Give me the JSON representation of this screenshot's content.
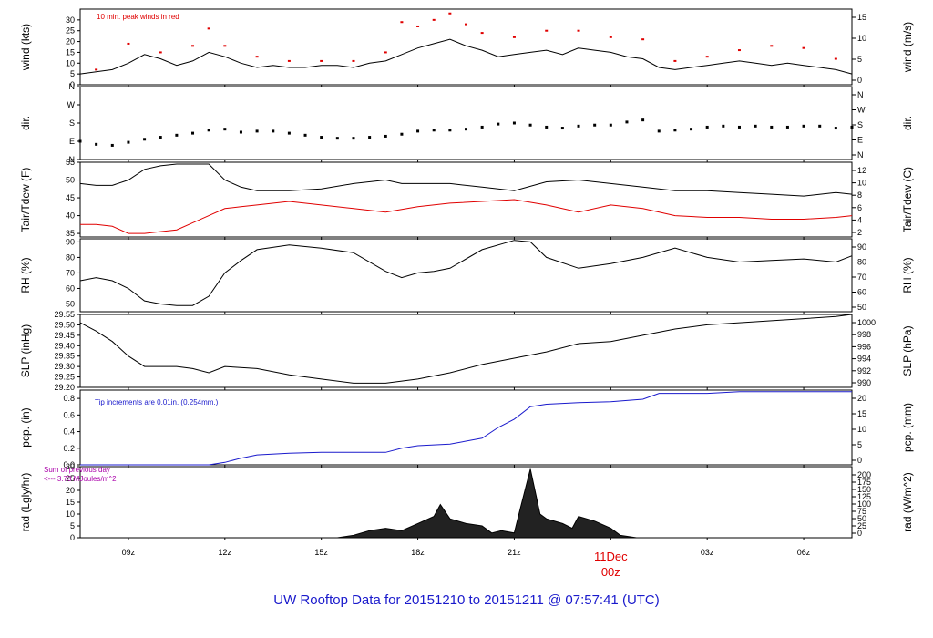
{
  "title": "UW Rooftop Data for 20151210  to  20151211 @ 07:57:41  (UTC)",
  "colors": {
    "line": "#000000",
    "red": "#e00000",
    "blue": "#1a1acc",
    "purple": "#aa00aa",
    "footer": "#1a1acc"
  },
  "chart_data": [
    {
      "id": "wind",
      "type": "line",
      "ylabel_left": "wind (kts)",
      "ylabel_right": "wind (m/s)",
      "ylim": [
        0,
        35
      ],
      "yticks_left": [
        "0",
        "5",
        "10",
        "15",
        "20",
        "25",
        "30"
      ],
      "yticks_right": [
        "0",
        "5",
        "10",
        "15"
      ],
      "annotation": "10 min. peak winds in red",
      "series": [
        {
          "name": "wind speed",
          "color": "#000000",
          "x": [
            7.5,
            8,
            8.5,
            9,
            9.5,
            10,
            10.5,
            11,
            11.5,
            12,
            12.5,
            13,
            13.5,
            14,
            14.5,
            15,
            15.5,
            16,
            16.5,
            17,
            17.5,
            18,
            18.5,
            19,
            19.5,
            20,
            20.5,
            21,
            21.5,
            22,
            22.5,
            23,
            23.5,
            24,
            24.5,
            25,
            25.5,
            26,
            26.5,
            27,
            27.5,
            28,
            28.5,
            29,
            29.5,
            30,
            30.5,
            31,
            31.5
          ],
          "values": [
            5,
            6,
            7,
            10,
            14,
            12,
            9,
            11,
            15,
            13,
            10,
            8,
            9,
            8,
            8,
            9,
            9,
            8,
            10,
            11,
            14,
            17,
            19,
            21,
            18,
            16,
            13,
            14,
            15,
            16,
            14,
            17,
            16,
            15,
            13,
            12,
            8,
            7,
            8,
            9,
            10,
            11,
            10,
            9,
            10,
            9,
            8,
            7,
            5
          ]
        },
        {
          "name": "10 min. peak winds",
          "color": "#e00000",
          "x": [
            8,
            9,
            10,
            11,
            11.5,
            12,
            13,
            14,
            15,
            16,
            17,
            17.5,
            18,
            18.5,
            19,
            19.5,
            20,
            21,
            22,
            23,
            24,
            25,
            26,
            27,
            28,
            29,
            30,
            31
          ],
          "values": [
            7,
            19,
            15,
            18,
            26,
            18,
            13,
            11,
            11,
            11,
            15,
            29,
            27,
            30,
            33,
            28,
            24,
            22,
            25,
            25,
            22,
            21,
            11,
            13,
            16,
            18,
            17,
            12
          ]
        }
      ]
    },
    {
      "id": "dir",
      "type": "scatter",
      "ylabel_left": "dir.",
      "ylabel_right": "dir.",
      "ylim": [
        0,
        360
      ],
      "yticks_left": [
        "N",
        "E",
        "S",
        "W",
        "N"
      ],
      "yticks_right": [
        "N",
        "E",
        "S",
        "W",
        "N"
      ],
      "series": [
        {
          "name": "wind direction",
          "color": "#000000",
          "x": [
            7.5,
            8,
            8.5,
            9,
            9.5,
            10,
            10.5,
            11,
            11.5,
            12,
            12.5,
            13,
            13.5,
            14,
            14.5,
            15,
            15.5,
            16,
            16.5,
            17,
            17.5,
            18,
            18.5,
            19,
            19.5,
            20,
            20.5,
            21,
            21.5,
            22,
            22.5,
            23,
            23.5,
            24,
            24.5,
            25,
            25.5,
            26,
            26.5,
            27,
            27.5,
            28,
            28.5,
            29,
            29.5,
            30,
            30.5,
            31,
            31.5
          ],
          "values": [
            90,
            75,
            70,
            85,
            100,
            110,
            120,
            130,
            145,
            150,
            135,
            140,
            140,
            130,
            120,
            110,
            105,
            105,
            110,
            115,
            125,
            140,
            145,
            145,
            150,
            160,
            175,
            180,
            170,
            160,
            155,
            165,
            170,
            170,
            185,
            195,
            140,
            145,
            150,
            160,
            165,
            160,
            165,
            160,
            160,
            165,
            165,
            155,
            160
          ]
        }
      ]
    },
    {
      "id": "temp",
      "type": "line",
      "ylabel_left": "Tair/Tdew (F)",
      "ylabel_right": "Tair/Tdew (C)",
      "ylim": [
        34,
        55
      ],
      "yticks_left": [
        "35",
        "40",
        "45",
        "50",
        "55"
      ],
      "yticks_right": [
        "2",
        "4",
        "6",
        "8",
        "10",
        "12"
      ],
      "series": [
        {
          "name": "Tair",
          "color": "#000000",
          "x": [
            7.5,
            8,
            8.5,
            9,
            9.5,
            10,
            10.5,
            11,
            11.5,
            12,
            12.5,
            13,
            14,
            15,
            16,
            17,
            17.5,
            18,
            19,
            20,
            21,
            22,
            23,
            24,
            25,
            26,
            27,
            28,
            29,
            30,
            31,
            31.5
          ],
          "values": [
            49,
            48.5,
            48.5,
            50,
            53,
            54,
            54.5,
            54.5,
            54.5,
            50,
            48,
            47,
            47,
            47.5,
            49,
            50,
            49,
            49,
            49,
            48,
            47,
            49.5,
            50,
            49,
            48,
            47,
            47,
            46.5,
            46,
            45.5,
            46.5,
            46
          ]
        },
        {
          "name": "Tdew",
          "color": "#e00000",
          "x": [
            7.5,
            8,
            8.5,
            9,
            9.5,
            10,
            10.5,
            11,
            11.5,
            12,
            12.5,
            13,
            14,
            15,
            16,
            17,
            18,
            19,
            20,
            21,
            22,
            23,
            24,
            25,
            26,
            27,
            28,
            29,
            30,
            31,
            31.5
          ],
          "values": [
            37.5,
            37.5,
            37,
            35,
            35,
            35.5,
            36,
            38,
            40,
            42,
            42.5,
            43,
            44,
            43,
            42,
            41,
            42.5,
            43.5,
            44,
            44.5,
            43,
            41,
            43,
            42,
            40,
            39.5,
            39.5,
            39,
            39,
            39.5,
            40
          ]
        }
      ]
    },
    {
      "id": "rh",
      "type": "line",
      "ylabel_left": "RH (%)",
      "ylabel_right": "RH (%)",
      "ylim": [
        45,
        92
      ],
      "yticks_left": [
        "50",
        "60",
        "70",
        "80",
        "90"
      ],
      "yticks_right": [
        "50",
        "60",
        "70",
        "80",
        "90"
      ],
      "series": [
        {
          "name": "RH",
          "color": "#000000",
          "x": [
            7.5,
            8,
            8.5,
            9,
            9.5,
            10,
            10.5,
            11,
            11.5,
            12,
            12.5,
            13,
            14,
            15,
            16,
            17,
            17.5,
            18,
            18.5,
            19,
            20,
            21,
            21.5,
            22,
            23,
            24,
            25,
            26,
            27,
            28,
            29,
            30,
            31,
            31.5
          ],
          "values": [
            65,
            67,
            65,
            60,
            52,
            50,
            49,
            49,
            55,
            70,
            78,
            85,
            88,
            86,
            83,
            71,
            67,
            70,
            71,
            73,
            85,
            91,
            90,
            80,
            73,
            76,
            80,
            86,
            80,
            77,
            78,
            79,
            77,
            81
          ]
        }
      ]
    },
    {
      "id": "slp",
      "type": "line",
      "ylabel_left": "SLP (inHg)",
      "ylabel_right": "SLP (hPa)",
      "ylim": [
        29.2,
        29.55
      ],
      "yticks_left": [
        "29.20",
        "29.25",
        "29.30",
        "29.35",
        "29.40",
        "29.45",
        "29.50",
        "29.55"
      ],
      "yticks_right": [
        "990",
        "992",
        "994",
        "996",
        "998",
        "1000"
      ],
      "series": [
        {
          "name": "SLP",
          "color": "#000000",
          "x": [
            7.5,
            8,
            8.5,
            9,
            9.5,
            10,
            10.5,
            11,
            11.5,
            12,
            13,
            14,
            15,
            16,
            17,
            18,
            19,
            20,
            21,
            22,
            23,
            24,
            25,
            26,
            27,
            28,
            29,
            30,
            31,
            31.5
          ],
          "values": [
            29.51,
            29.47,
            29.42,
            29.35,
            29.3,
            29.3,
            29.3,
            29.29,
            29.27,
            29.3,
            29.29,
            29.26,
            29.24,
            29.22,
            29.22,
            29.24,
            29.27,
            29.31,
            29.34,
            29.37,
            29.41,
            29.42,
            29.45,
            29.48,
            29.5,
            29.51,
            29.52,
            29.53,
            29.54,
            29.55
          ]
        }
      ]
    },
    {
      "id": "pcp",
      "type": "line",
      "ylabel_left": "pcp. (in)",
      "ylabel_right": "pcp. (mm)",
      "ylim": [
        0,
        0.9
      ],
      "yticks_left": [
        "0.0",
        "0.2",
        "0.4",
        "0.6",
        "0.8"
      ],
      "yticks_right": [
        "0",
        "5",
        "10",
        "15",
        "20"
      ],
      "annotation": "Tip increments are 0.01in. (0.254mm.)",
      "series": [
        {
          "name": "precipitation",
          "color": "#1a1acc",
          "x": [
            7.5,
            10,
            11.5,
            12,
            12.5,
            13,
            14,
            15,
            16,
            17,
            17.5,
            18,
            19,
            20,
            20.5,
            21,
            21.5,
            22,
            23,
            24,
            25,
            25.5,
            26,
            27,
            28,
            29,
            30,
            31,
            31.5
          ],
          "values": [
            0,
            0,
            0,
            0.03,
            0.08,
            0.12,
            0.14,
            0.15,
            0.15,
            0.15,
            0.2,
            0.23,
            0.25,
            0.32,
            0.45,
            0.55,
            0.7,
            0.73,
            0.75,
            0.76,
            0.79,
            0.86,
            0.86,
            0.86,
            0.88,
            0.88,
            0.88,
            0.88,
            0.88
          ]
        }
      ]
    },
    {
      "id": "rad",
      "type": "area",
      "ylabel_left": "rad (Lgly/hr)",
      "ylabel_right": "rad (W/m^2)",
      "ylim": [
        0,
        30
      ],
      "yticks_left": [
        "0",
        "5",
        "10",
        "15",
        "20",
        "25",
        "30"
      ],
      "yticks_right": [
        "0",
        "25",
        "50",
        "75",
        "100",
        "125",
        "150",
        "175",
        "200"
      ],
      "annotation_lines": [
        "Sum of previous day",
        "<--- 3.73 MJoules/m^2"
      ],
      "series": [
        {
          "name": "radiation",
          "color": "#000000",
          "x": [
            15.5,
            16,
            16.5,
            17,
            17.5,
            18,
            18.5,
            18.7,
            19,
            19.5,
            20,
            20.3,
            20.6,
            21,
            21.2,
            21.5,
            21.8,
            22,
            22.5,
            22.8,
            23,
            23.5,
            24,
            24.3,
            24.8
          ],
          "values": [
            0,
            1,
            3,
            4,
            3,
            6,
            9,
            14,
            8,
            6,
            5,
            2,
            3,
            2,
            13,
            29,
            10,
            8,
            6,
            4,
            9,
            7,
            4,
            1,
            0
          ]
        }
      ]
    }
  ],
  "xaxis": {
    "ticks": [
      [
        "09z",
        9
      ],
      [
        "12z",
        12
      ],
      [
        "15z",
        15
      ],
      [
        "18z",
        18
      ],
      [
        "21z",
        21
      ],
      [
        "03z",
        27
      ],
      [
        "06z",
        30
      ]
    ],
    "date_label": "11Dec",
    "date_tick_label": "00z",
    "date_x": 24,
    "xmin": 7.5,
    "xmax": 31.5
  }
}
